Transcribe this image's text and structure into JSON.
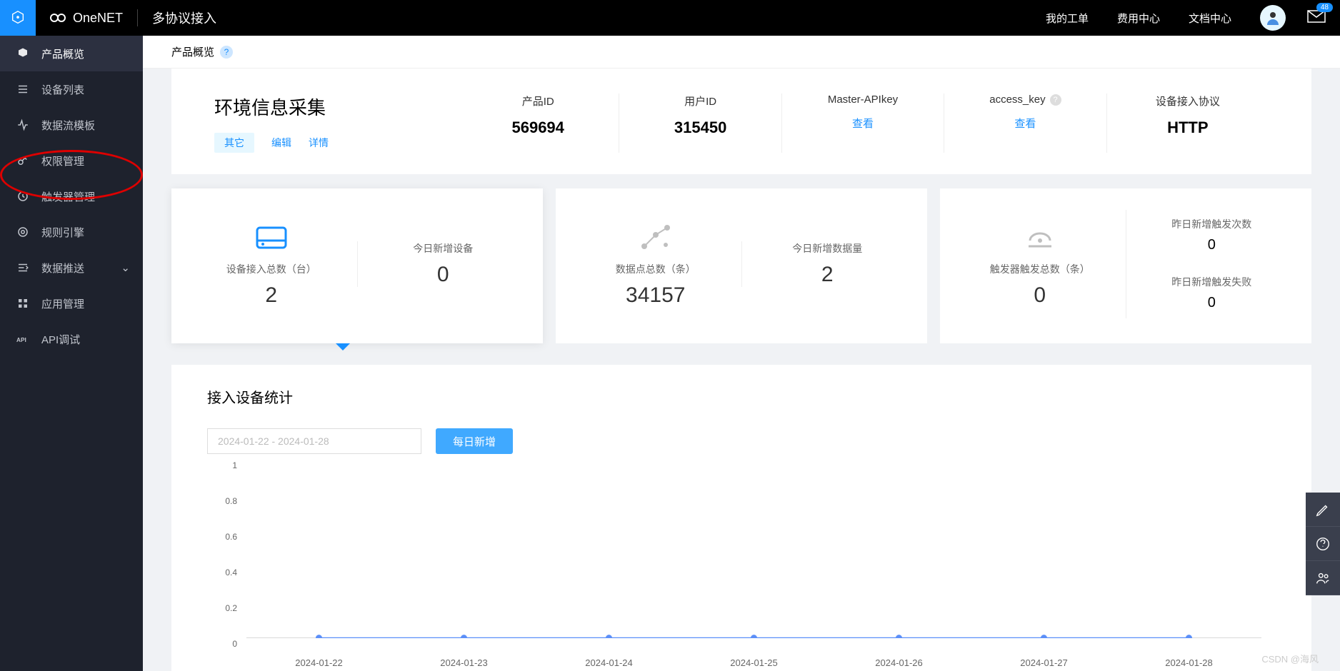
{
  "header": {
    "brand": "OneNET",
    "protocol_title": "多协议接入",
    "nav": [
      {
        "label": "我的工单"
      },
      {
        "label": "费用中心"
      },
      {
        "label": "文档中心"
      }
    ],
    "badge_count": "48"
  },
  "sidebar": {
    "items": [
      {
        "label": "产品概览",
        "icon": "cube",
        "active": true
      },
      {
        "label": "设备列表",
        "icon": "list"
      },
      {
        "label": "数据流模板",
        "icon": "pulse"
      },
      {
        "label": "权限管理",
        "icon": "key"
      },
      {
        "label": "触发器管理",
        "icon": "trigger"
      },
      {
        "label": "规则引擎",
        "icon": "gear"
      },
      {
        "label": "数据推送",
        "icon": "push",
        "expandable": true
      },
      {
        "label": "应用管理",
        "icon": "grid"
      },
      {
        "label": "API调试",
        "icon": "api"
      }
    ]
  },
  "breadcrumb": {
    "title": "产品概览"
  },
  "product": {
    "name": "环境信息采集",
    "tabs": [
      {
        "label": "其它",
        "active": true
      },
      {
        "label": "编辑"
      },
      {
        "label": "详情"
      }
    ],
    "cells": [
      {
        "label": "产品ID",
        "value": "569694",
        "type": "value"
      },
      {
        "label": "用户ID",
        "value": "315450",
        "type": "value"
      },
      {
        "label": "Master-APIkey",
        "action": "查看",
        "type": "link"
      },
      {
        "label": "access_key",
        "action": "查看",
        "type": "link",
        "help": true
      },
      {
        "label": "设备接入协议",
        "value": "HTTP",
        "type": "value"
      }
    ]
  },
  "stats": {
    "cards": [
      {
        "left": {
          "icon": "device",
          "icon_color": "#1890ff",
          "label": "设备接入总数（台）",
          "value": "2"
        },
        "right": {
          "label": "今日新增设备",
          "value": "0"
        },
        "active": true
      },
      {
        "left": {
          "icon": "datapoint",
          "icon_color": "#bfbfbf",
          "label": "数据点总数（条）",
          "value": "34157"
        },
        "right": {
          "label": "今日新增数据量",
          "value": "2"
        }
      },
      {
        "left": {
          "icon": "trigger",
          "icon_color": "#bfbfbf",
          "label": "触发器触发总数（条）",
          "value": "0"
        },
        "right_rows": [
          {
            "label": "昨日新增触发次数",
            "value": "0"
          },
          {
            "label": "昨日新增触发失败",
            "value": "0"
          }
        ]
      }
    ]
  },
  "chart": {
    "title": "接入设备统计",
    "date_range": "2024-01-22 - 2024-01-28",
    "button_label": "每日新增",
    "type": "line",
    "ylim": [
      0,
      1
    ],
    "yticks": [
      "0",
      "0.2",
      "0.4",
      "0.6",
      "0.8",
      "1"
    ],
    "x_labels": [
      "2024-01-22",
      "2024-01-23",
      "2024-01-24",
      "2024-01-25",
      "2024-01-26",
      "2024-01-27",
      "2024-01-28"
    ],
    "values": [
      0,
      0,
      0,
      0,
      0,
      0,
      0
    ],
    "line_color": "#5b8ff9",
    "marker_color": "#5b8ff9",
    "marker_radius": 5,
    "line_width": 2,
    "grid_color": "#e8e8e8",
    "background_color": "#ffffff",
    "tick_fontsize": 12
  },
  "watermark": "CSDN @海风"
}
